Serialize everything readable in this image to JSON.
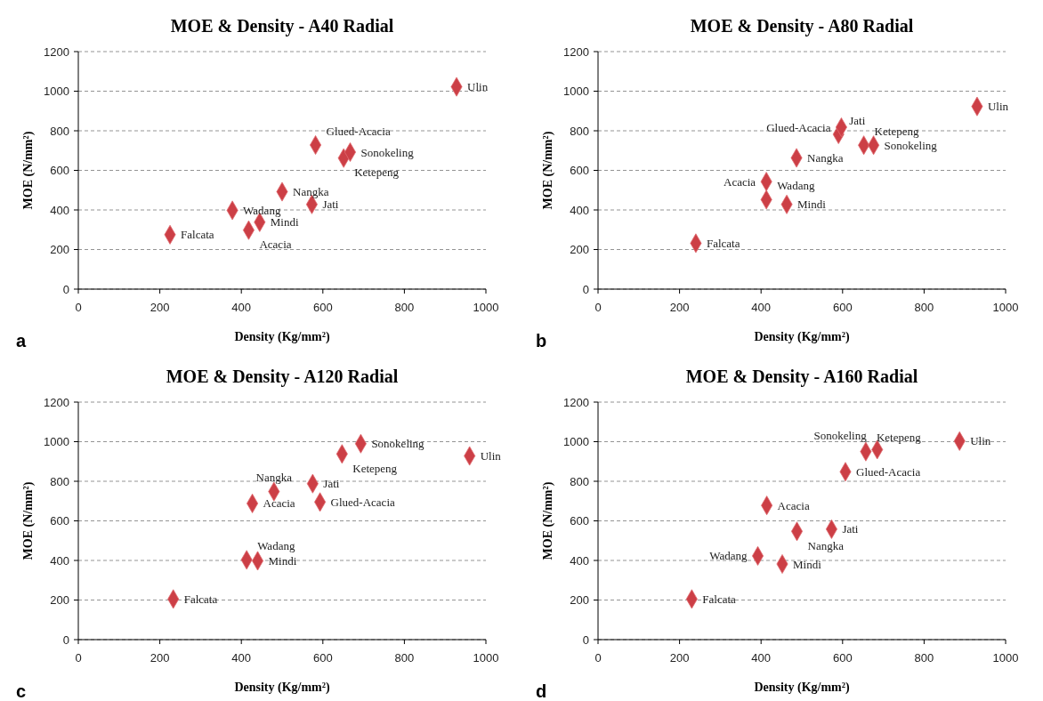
{
  "chart_data": [
    {
      "type": "scatter",
      "title": "MOE & Density - A40 Radial",
      "xlabel": "Density (Kg/mm²)",
      "ylabel": "MOE (N/mm²)",
      "xlim": [
        0,
        1000
      ],
      "xticks": [
        0,
        200,
        400,
        600,
        800,
        1000
      ],
      "ylim": [
        0,
        1200
      ],
      "yticks": [
        0,
        200,
        400,
        600,
        800,
        1000,
        1200
      ],
      "grid": "y",
      "marker": "diamond",
      "series": [
        {
          "color": "#cc3f46",
          "x": [
            225,
            378,
            418,
            445,
            500,
            573,
            582,
            651,
            667,
            928
          ],
          "values": [
            275,
            398,
            298,
            338,
            492,
            428,
            728,
            662,
            692,
            1022
          ]
        }
      ],
      "annotations": [
        "a",
        {
          "text": "Falcata",
          "x": 225,
          "y": 275
        },
        {
          "text": "Wadang",
          "x": 378,
          "y": 398
        },
        {
          "text": "Acacia",
          "x": 418,
          "y": 298
        },
        {
          "text": "Mindi",
          "x": 445,
          "y": 338
        },
        {
          "text": "Nangka",
          "x": 500,
          "y": 492
        },
        {
          "text": "Jati",
          "x": 573,
          "y": 428
        },
        {
          "text": "Glued-Acacia",
          "x": 582,
          "y": 728
        },
        {
          "text": "Ketepeng",
          "x": 651,
          "y": 662
        },
        {
          "text": "Sonokeling",
          "x": 667,
          "y": 692
        },
        {
          "text": "Ulin",
          "x": 928,
          "y": 1022
        }
      ]
    },
    {
      "type": "scatter",
      "title": "MOE & Density - A80 Radial",
      "xlabel": "Density (Kg/mm²)",
      "ylabel": "MOE (N/mm²)",
      "xlim": [
        0,
        1000
      ],
      "xticks": [
        0,
        200,
        400,
        600,
        800,
        1000
      ],
      "ylim": [
        0,
        1200
      ],
      "yticks": [
        0,
        200,
        400,
        600,
        800,
        1000,
        1200
      ],
      "grid": "y",
      "marker": "diamond",
      "series": [
        {
          "color": "#cc3f46",
          "x": [
            240,
            413,
            413,
            463,
            487,
            590,
            597,
            652,
            676,
            930
          ],
          "values": [
            232,
            452,
            543,
            428,
            663,
            782,
            818,
            727,
            727,
            923
          ]
        }
      ],
      "annotations": [
        "b",
        {
          "text": "Falcata",
          "x": 240,
          "y": 232
        },
        {
          "text": "Wadang",
          "x": 413,
          "y": 452
        },
        {
          "text": "Acacia",
          "x": 413,
          "y": 543
        },
        {
          "text": "Mindi",
          "x": 463,
          "y": 428
        },
        {
          "text": "Nangka",
          "x": 487,
          "y": 663
        },
        {
          "text": "Jati",
          "x": 590,
          "y": 782
        },
        {
          "text": "Glued-Acacia",
          "x": 597,
          "y": 818
        },
        {
          "text": "Ketepeng",
          "x": 652,
          "y": 727
        },
        {
          "text": "Sonokeling",
          "x": 676,
          "y": 727
        },
        {
          "text": "Ulin",
          "x": 930,
          "y": 923
        }
      ]
    },
    {
      "type": "scatter",
      "title": "MOE & Density - A120 Radial",
      "xlabel": "Density (Kg/mm²)",
      "ylabel": "MOE (N/mm²)",
      "xlim": [
        0,
        1000
      ],
      "xticks": [
        0,
        200,
        400,
        600,
        800,
        1000
      ],
      "ylim": [
        0,
        1200
      ],
      "yticks": [
        0,
        200,
        400,
        600,
        800,
        1000,
        1200
      ],
      "grid": "y",
      "marker": "diamond",
      "series": [
        {
          "color": "#cc3f46",
          "x": [
            233,
            413,
            440,
            427,
            480,
            575,
            593,
            647,
            693,
            960
          ],
          "values": [
            205,
            403,
            398,
            688,
            748,
            788,
            695,
            938,
            990,
            928
          ]
        }
      ],
      "annotations": [
        "c",
        {
          "text": "Falcata",
          "x": 233,
          "y": 205
        },
        {
          "text": "Wadang",
          "x": 413,
          "y": 403
        },
        {
          "text": "Mindi",
          "x": 440,
          "y": 398
        },
        {
          "text": "Acacia",
          "x": 427,
          "y": 688
        },
        {
          "text": "Nangka",
          "x": 480,
          "y": 748
        },
        {
          "text": "Jati",
          "x": 575,
          "y": 788
        },
        {
          "text": "Glued-Acacia",
          "x": 593,
          "y": 695
        },
        {
          "text": "Ketepeng",
          "x": 647,
          "y": 938
        },
        {
          "text": "Sonokeling",
          "x": 693,
          "y": 990
        },
        {
          "text": "Ulin",
          "x": 960,
          "y": 928
        }
      ]
    },
    {
      "type": "scatter",
      "title": "MOE & Density - A160 Radial",
      "xlabel": "Density (Kg/mm²)",
      "ylabel": "MOE (N/mm²)",
      "xlim": [
        0,
        1000
      ],
      "xticks": [
        0,
        200,
        400,
        600,
        800,
        1000
      ],
      "ylim": [
        0,
        1200
      ],
      "yticks": [
        0,
        200,
        400,
        600,
        800,
        1000,
        1200
      ],
      "grid": "y",
      "marker": "diamond",
      "series": [
        {
          "color": "#cc3f46",
          "x": [
            230,
            392,
            452,
            414,
            488,
            573,
            607,
            657,
            685,
            887
          ],
          "values": [
            205,
            423,
            382,
            678,
            547,
            558,
            848,
            950,
            960,
            1003
          ]
        }
      ],
      "annotations": [
        "d",
        {
          "text": "Falcata",
          "x": 230,
          "y": 205
        },
        {
          "text": "Wadang",
          "x": 392,
          "y": 423
        },
        {
          "text": "Mindi",
          "x": 452,
          "y": 382
        },
        {
          "text": "Acacia",
          "x": 414,
          "y": 678
        },
        {
          "text": "Nangka",
          "x": 488,
          "y": 547
        },
        {
          "text": "Jati",
          "x": 573,
          "y": 558
        },
        {
          "text": "Glued-Acacia",
          "x": 607,
          "y": 848
        },
        {
          "text": "Ketepeng",
          "x": 657,
          "y": 950
        },
        {
          "text": "Sonokeling",
          "x": 685,
          "y": 960
        },
        {
          "text": "Ulin",
          "x": 887,
          "y": 1003
        }
      ]
    }
  ]
}
